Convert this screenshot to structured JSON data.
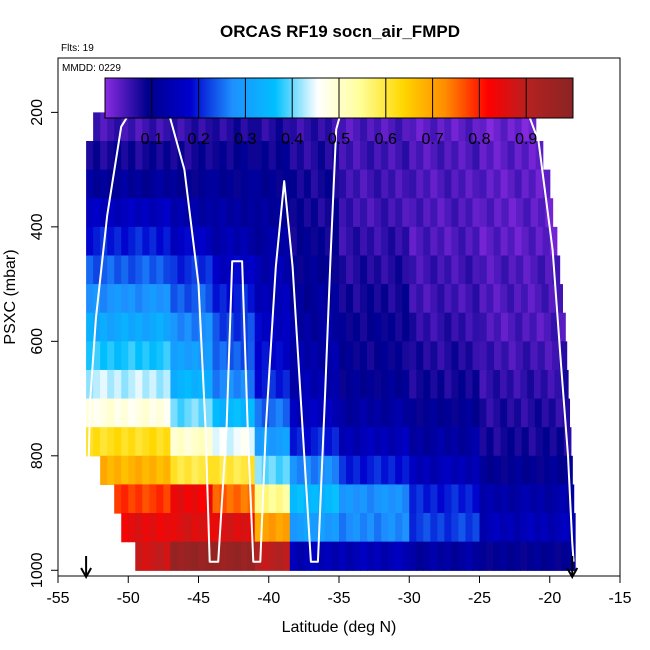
{
  "chart_data": {
    "type": "heatmap",
    "title": "ORCAS RF19 socn_air_FMPD",
    "flights_label": "Flts: 19",
    "date_label": "MMDD: 0229",
    "xlabel": "Latitude (deg N)",
    "ylabel": "PSXC (mbar)",
    "xlim": [
      -55,
      -15
    ],
    "ylim": [
      1010,
      105
    ],
    "x_ticks": [
      -55,
      -50,
      -45,
      -40,
      -35,
      -30,
      -25,
      -20,
      -15
    ],
    "x_tick_labels": [
      "-55",
      "-50",
      "-45",
      "-40",
      "-35",
      "-30",
      "-25",
      "-20",
      "-15"
    ],
    "y_ticks": [
      200,
      400,
      600,
      800,
      1000
    ],
    "y_tick_labels": [
      "200",
      "400",
      "600",
      "800",
      "1000"
    ],
    "colorbar": {
      "range": [
        0,
        1
      ],
      "ticks": [
        0.1,
        0.2,
        0.3,
        0.4,
        0.5,
        0.6,
        0.7,
        0.8,
        0.9
      ],
      "tick_labels": [
        "0.1",
        "0.2",
        "0.3",
        "0.4",
        "0.5",
        "0.6",
        "0.7",
        "0.8",
        "0.9"
      ],
      "colors": [
        "#8a2be2",
        "#00008b",
        "#0000cd",
        "#1e90ff",
        "#00bfff",
        "#ffffff",
        "#ffff99",
        "#ffd700",
        "#ff8c00",
        "#ff0000",
        "#b22222",
        "#8b2323"
      ]
    },
    "pressure_levels": [
      175,
      225,
      275,
      325,
      375,
      425,
      475,
      525,
      575,
      625,
      675,
      725,
      775,
      825,
      875,
      925,
      975
    ],
    "data_x_extent": [
      [
        -51,
        -21.5
      ],
      [
        -52.5,
        -21.0
      ],
      [
        -53.0,
        -20.5
      ],
      [
        -53.5,
        -20.0
      ],
      [
        -54.0,
        -19.8
      ],
      [
        -54.0,
        -19.5
      ],
      [
        -54.5,
        -19.3
      ],
      [
        -54.5,
        -19.1
      ],
      [
        -54.5,
        -18.9
      ],
      [
        -54.5,
        -18.8
      ],
      [
        -54.5,
        -18.7
      ],
      [
        -54.5,
        -18.6
      ],
      [
        -53.5,
        -18.5
      ],
      [
        -52.0,
        -18.4
      ],
      [
        -51.0,
        -18.3
      ],
      [
        -50.5,
        -18.2
      ],
      [
        -49.5,
        -18.2
      ]
    ],
    "columns": [
      {
        "lon": [
          -53.0,
          -47.0
        ],
        "v": [
          0.05,
          0.05,
          0.08,
          0.11,
          0.16,
          0.2,
          0.24,
          0.28,
          0.32,
          0.37,
          0.43,
          0.48,
          0.62,
          0.68,
          0.78,
          0.85,
          0.88
        ]
      },
      {
        "lon": [
          -47.0,
          -44.0
        ],
        "v": [
          0.05,
          0.06,
          0.08,
          0.1,
          0.13,
          0.17,
          0.21,
          0.24,
          0.27,
          0.3,
          0.34,
          0.4,
          0.5,
          0.6,
          0.84,
          0.86,
          0.97
        ]
      },
      {
        "lon": [
          -44.0,
          -41.0
        ],
        "v": [
          0.05,
          0.07,
          0.09,
          0.1,
          0.12,
          0.14,
          0.17,
          0.2,
          0.22,
          0.24,
          0.27,
          0.35,
          0.45,
          0.6,
          0.75,
          0.86,
          0.97
        ]
      },
      {
        "lon": [
          -41.0,
          -38.5
        ],
        "v": [
          0.05,
          0.07,
          0.09,
          0.1,
          0.11,
          0.12,
          0.14,
          0.15,
          0.17,
          0.18,
          0.2,
          0.25,
          0.3,
          0.4,
          0.55,
          0.7,
          0.9
        ]
      },
      {
        "lon": [
          -38.5,
          -35.0
        ],
        "v": [
          0.05,
          0.06,
          0.07,
          0.08,
          0.08,
          0.09,
          0.1,
          0.11,
          0.12,
          0.13,
          0.14,
          0.16,
          0.2,
          0.27,
          0.35,
          0.3,
          0.15
        ]
      },
      {
        "lon": [
          -35.0,
          -30.0
        ],
        "v": [
          0.03,
          0.04,
          0.05,
          0.05,
          0.05,
          0.06,
          0.07,
          0.08,
          0.09,
          0.09,
          0.1,
          0.12,
          0.15,
          0.2,
          0.28,
          0.27,
          0.15
        ]
      },
      {
        "lon": [
          -30.0,
          -25.0
        ],
        "v": [
          0.03,
          0.03,
          0.04,
          0.04,
          0.04,
          0.04,
          0.05,
          0.05,
          0.06,
          0.07,
          0.08,
          0.1,
          0.12,
          0.15,
          0.2,
          0.22,
          0.12
        ]
      },
      {
        "lon": [
          -25.0,
          -18.0
        ],
        "v": [
          0.02,
          0.02,
          0.03,
          0.03,
          0.03,
          0.03,
          0.04,
          0.04,
          0.04,
          0.05,
          0.06,
          0.07,
          0.08,
          0.1,
          0.13,
          0.15,
          0.1
        ]
      }
    ],
    "flight_track": [
      [
        -53,
        975
      ],
      [
        -52.7,
        700
      ],
      [
        -52.3,
        560
      ],
      [
        -51.5,
        380
      ],
      [
        -50.5,
        225
      ],
      [
        -49.5,
        185
      ],
      [
        -47.3,
        185
      ],
      [
        -46,
        300
      ],
      [
        -45,
        500
      ],
      [
        -44.5,
        750
      ],
      [
        -44.2,
        985
      ],
      [
        -43.6,
        985
      ],
      [
        -43,
        750
      ],
      [
        -42.6,
        460
      ],
      [
        -41.9,
        460
      ],
      [
        -41.5,
        750
      ],
      [
        -41.1,
        985
      ],
      [
        -40.6,
        985
      ],
      [
        -40.2,
        750
      ],
      [
        -39.5,
        470
      ],
      [
        -38.9,
        320
      ],
      [
        -38.3,
        470
      ],
      [
        -37.6,
        750
      ],
      [
        -37,
        985
      ],
      [
        -36.5,
        985
      ],
      [
        -36,
        700
      ],
      [
        -35.6,
        450
      ],
      [
        -35.2,
        230
      ],
      [
        -34.7,
        185
      ],
      [
        -21.8,
        185
      ],
      [
        -20.8,
        250
      ],
      [
        -19.8,
        440
      ],
      [
        -19.2,
        640
      ],
      [
        -18.7,
        800
      ],
      [
        -18.4,
        950
      ],
      [
        -18.3,
        985
      ]
    ],
    "markers": [
      {
        "lon": -53.0,
        "label": "start arrow"
      },
      {
        "lon": -18.4,
        "label": "end arrow"
      }
    ]
  }
}
